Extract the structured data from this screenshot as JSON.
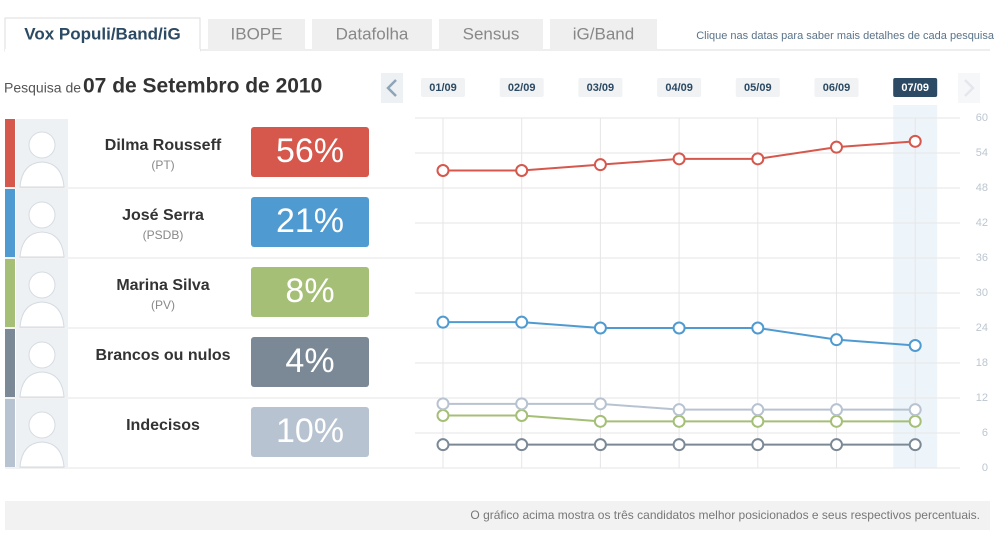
{
  "tabs": [
    "Vox Populi/Band/iG",
    "IBOPE",
    "Datafolha",
    "Sensus",
    "iG/Band"
  ],
  "hint": "Clique nas datas para saber mais detalhes de cada pesquisa",
  "survey_label": "Pesquisa de",
  "survey_date": "07 de Setembro de 2010",
  "footer": "O gráfico acima mostra os três candidatos melhor posicionados e seus respectivos percentuais.",
  "chart_data": {
    "type": "line",
    "categories": [
      "01/09",
      "02/09",
      "03/09",
      "04/09",
      "05/09",
      "06/09",
      "07/09"
    ],
    "series": [
      {
        "name": "Dilma Rousseff",
        "party": "(PT)",
        "color": "#d6574c",
        "values": [
          51,
          51,
          52,
          53,
          53,
          55,
          56
        ],
        "value_labels": [
          null,
          null,
          null,
          null,
          null,
          null,
          "56%"
        ]
      },
      {
        "name": "José Serra",
        "party": "(PSDB)",
        "color": "#4f9bd1",
        "values": [
          25,
          25,
          24,
          24,
          24,
          22,
          21
        ],
        "value_labels": [
          null,
          null,
          null,
          null,
          null,
          null,
          "21%"
        ]
      },
      {
        "name": "Marina Silva",
        "party": "(PV)",
        "color": "#a5bf76",
        "values": [
          9,
          9,
          8,
          8,
          8,
          8,
          8
        ],
        "value_labels": [
          null,
          null,
          null,
          null,
          null,
          null,
          "8%"
        ]
      },
      {
        "name": "Brancos ou nulos",
        "color": "#7b8996",
        "values": [
          4,
          4,
          4,
          4,
          4,
          4,
          4
        ],
        "value_labels": [
          null,
          null,
          null,
          null,
          null,
          null,
          "4%"
        ]
      },
      {
        "name": "Indecisos",
        "color": "#b8c3d1",
        "values": [
          11,
          11,
          11,
          10,
          10,
          10,
          10
        ],
        "value_labels": [
          null,
          null,
          null,
          null,
          null,
          null,
          "10%"
        ]
      }
    ],
    "ylim": [
      0,
      60
    ],
    "yticks": [
      0,
      6,
      12,
      18,
      24,
      30,
      36,
      42,
      48,
      54,
      60
    ],
    "grid": true
  }
}
